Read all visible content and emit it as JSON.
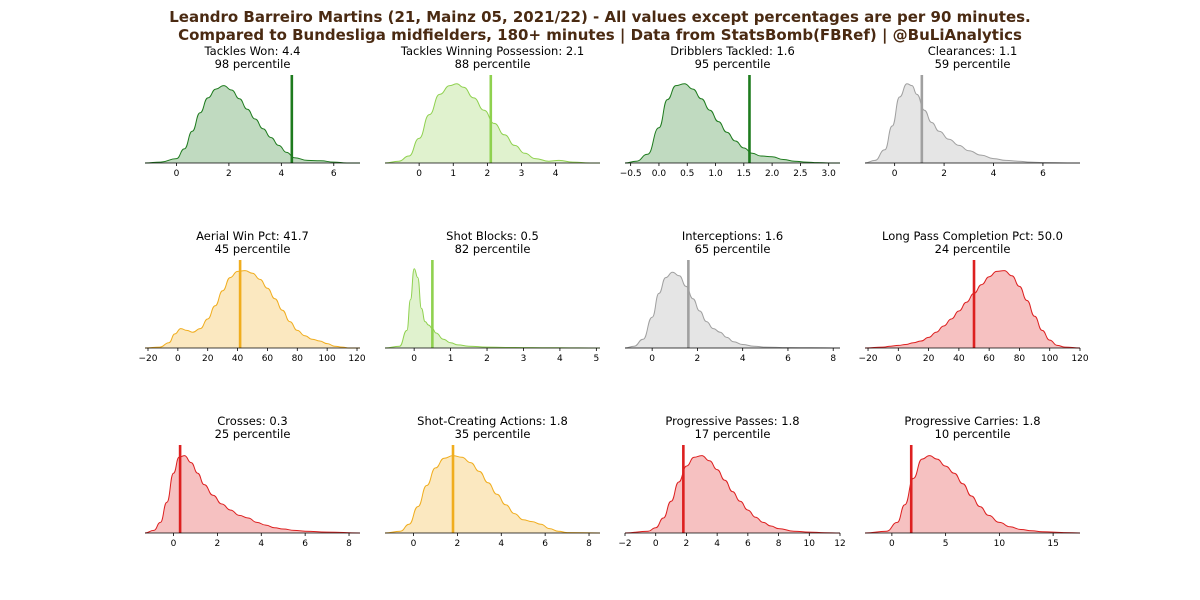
{
  "figure": {
    "title_line1": "Leandro Barreiro Martins (21, Mainz 05, 2021/22) - All values except percentages are per 90 minutes.",
    "title_line2": "Compared to Bundesliga midfielders, 180+ minutes | Data from StatsBomb(FBRef) | @BuLiAnalytics",
    "title_color": "#4a2a12"
  },
  "chart_data": [
    {
      "type": "area",
      "metric": "Tackles Won",
      "value": 4.4,
      "value_label": "4.4",
      "percentile_label": "98 percentile",
      "color": "#1e7b1e",
      "xlim": [
        -1.2,
        7
      ],
      "ticks": [
        0,
        2,
        4,
        6
      ],
      "tick_labels": [
        "0",
        "2",
        "4",
        "6"
      ],
      "density_x": [
        -1.2,
        -0.6,
        0,
        0.3,
        0.6,
        0.9,
        1.2,
        1.5,
        1.8,
        2.1,
        2.4,
        2.7,
        3.0,
        3.3,
        3.6,
        3.9,
        4.2,
        4.5,
        5.0,
        5.5,
        6.0,
        6.5,
        7.0
      ],
      "density_y": [
        0,
        0.01,
        0.05,
        0.16,
        0.36,
        0.57,
        0.74,
        0.84,
        0.88,
        0.83,
        0.73,
        0.61,
        0.5,
        0.39,
        0.29,
        0.2,
        0.12,
        0.06,
        0.03,
        0.025,
        0.01,
        0,
        0
      ]
    },
    {
      "type": "area",
      "metric": "Tackles Winning Possession",
      "value": 2.1,
      "value_label": "2.1",
      "percentile_label": "88 percentile",
      "color": "#8fd14f",
      "xlim": [
        -1.0,
        5.3
      ],
      "ticks": [
        0,
        1,
        2,
        3,
        4
      ],
      "tick_labels": [
        "0",
        "1",
        "2",
        "3",
        "4"
      ],
      "density_x": [
        -1.0,
        -0.6,
        -0.3,
        0,
        0.3,
        0.6,
        0.9,
        1.1,
        1.3,
        1.6,
        1.9,
        2.2,
        2.5,
        2.8,
        3.1,
        3.4,
        3.8,
        4.1,
        4.5,
        5.0,
        5.3
      ],
      "density_y": [
        0,
        0.02,
        0.08,
        0.28,
        0.55,
        0.78,
        0.88,
        0.9,
        0.86,
        0.74,
        0.6,
        0.45,
        0.32,
        0.2,
        0.11,
        0.05,
        0.02,
        0.03,
        0.01,
        0,
        0
      ]
    },
    {
      "type": "area",
      "metric": "Dribblers Tackled",
      "value": 1.6,
      "value_label": "1.6",
      "percentile_label": "95 percentile",
      "color": "#1e7b1e",
      "xlim": [
        -0.6,
        3.2
      ],
      "ticks": [
        -0.5,
        0,
        0.5,
        1,
        1.5,
        2,
        2.5,
        3
      ],
      "tick_labels": [
        "−0.5",
        "0.0",
        "0.5",
        "1.0",
        "1.5",
        "2.0",
        "2.5",
        "3.0"
      ],
      "density_x": [
        -0.6,
        -0.4,
        -0.2,
        0,
        0.15,
        0.3,
        0.45,
        0.6,
        0.75,
        0.9,
        1.05,
        1.2,
        1.35,
        1.5,
        1.65,
        1.8,
        2.0,
        2.2,
        2.4,
        2.6,
        2.8,
        3.0,
        3.2
      ],
      "density_y": [
        0,
        0.02,
        0.1,
        0.4,
        0.72,
        0.88,
        0.9,
        0.84,
        0.73,
        0.6,
        0.47,
        0.35,
        0.25,
        0.17,
        0.11,
        0.08,
        0.07,
        0.04,
        0.02,
        0.01,
        0.005,
        0,
        0
      ]
    },
    {
      "type": "area",
      "metric": "Clearances",
      "value": 1.1,
      "value_label": "1.1",
      "percentile_label": "59 percentile",
      "color": "#a0a0a0",
      "xlim": [
        -1.2,
        7.5
      ],
      "ticks": [
        0,
        2,
        4,
        6
      ],
      "tick_labels": [
        "0",
        "2",
        "4",
        "6"
      ],
      "density_x": [
        -1.2,
        -0.8,
        -0.4,
        -0.1,
        0.2,
        0.5,
        0.7,
        0.9,
        1.2,
        1.5,
        1.8,
        2.2,
        2.6,
        3.0,
        3.5,
        4.0,
        4.5,
        5.0,
        5.5,
        6.0,
        7.0,
        7.5
      ],
      "density_y": [
        0,
        0.03,
        0.15,
        0.42,
        0.75,
        0.9,
        0.88,
        0.78,
        0.6,
        0.46,
        0.36,
        0.27,
        0.2,
        0.14,
        0.09,
        0.05,
        0.03,
        0.02,
        0.01,
        0.005,
        0,
        0
      ]
    },
    {
      "type": "area",
      "metric": "Aerial Win Pct",
      "value": 41.7,
      "value_label": "41.7",
      "percentile_label": "45 percentile",
      "color": "#f0ad1e",
      "xlim": [
        -22,
        122
      ],
      "ticks": [
        -20,
        0,
        20,
        40,
        60,
        80,
        100,
        120
      ],
      "tick_labels": [
        "−20",
        "0",
        "20",
        "40",
        "60",
        "80",
        "100",
        "120"
      ],
      "density_x": [
        -22,
        -12,
        -6,
        -2,
        2,
        6,
        10,
        15,
        20,
        25,
        30,
        35,
        40,
        45,
        50,
        55,
        60,
        65,
        70,
        75,
        80,
        85,
        90,
        95,
        100,
        105,
        110,
        115,
        122
      ],
      "density_y": [
        0,
        0.01,
        0.06,
        0.16,
        0.22,
        0.2,
        0.18,
        0.22,
        0.33,
        0.48,
        0.65,
        0.8,
        0.87,
        0.88,
        0.85,
        0.78,
        0.68,
        0.56,
        0.43,
        0.3,
        0.2,
        0.14,
        0.1,
        0.08,
        0.05,
        0.02,
        0.01,
        0,
        0
      ]
    },
    {
      "type": "area",
      "metric": "Shot Blocks",
      "value": 0.5,
      "value_label": "0.5",
      "percentile_label": "82 percentile",
      "color": "#8fd14f",
      "xlim": [
        -0.8,
        5.1
      ],
      "ticks": [
        0,
        1,
        2,
        3,
        4,
        5
      ],
      "tick_labels": [
        "0",
        "1",
        "2",
        "3",
        "4",
        "5"
      ],
      "density_x": [
        -0.8,
        -0.4,
        -0.2,
        -0.1,
        0,
        0.1,
        0.2,
        0.3,
        0.4,
        0.5,
        0.6,
        0.8,
        1.0,
        1.2,
        1.5,
        2.0,
        2.5,
        3.0,
        3.5,
        4.0,
        4.5,
        5.1
      ],
      "density_y": [
        0,
        0.02,
        0.2,
        0.55,
        0.9,
        0.8,
        0.45,
        0.3,
        0.26,
        0.22,
        0.17,
        0.1,
        0.06,
        0.035,
        0.02,
        0.01,
        0.006,
        0.004,
        0.003,
        0.002,
        0.001,
        0
      ]
    },
    {
      "type": "area",
      "metric": "Interceptions",
      "value": 1.6,
      "value_label": "1.6",
      "percentile_label": "65 percentile",
      "color": "#a0a0a0",
      "xlim": [
        -1.2,
        8.3
      ],
      "ticks": [
        0,
        2,
        4,
        6,
        8
      ],
      "tick_labels": [
        "0",
        "2",
        "4",
        "6",
        "8"
      ],
      "density_x": [
        -1.2,
        -0.8,
        -0.4,
        0,
        0.3,
        0.6,
        0.9,
        1.2,
        1.5,
        1.8,
        2.1,
        2.4,
        2.7,
        3.0,
        3.3,
        3.6,
        4.0,
        4.5,
        5.0,
        6.0,
        7.0,
        8.3
      ],
      "density_y": [
        0,
        0.02,
        0.1,
        0.35,
        0.62,
        0.8,
        0.86,
        0.82,
        0.7,
        0.56,
        0.42,
        0.3,
        0.22,
        0.18,
        0.12,
        0.07,
        0.04,
        0.02,
        0.01,
        0.005,
        0.002,
        0
      ]
    },
    {
      "type": "area",
      "metric": "Long Pass Completion Pct",
      "value": 50.0,
      "value_label": "50.0",
      "percentile_label": "24 percentile",
      "color": "#dd2020",
      "xlim": [
        -22,
        120
      ],
      "ticks": [
        -20,
        0,
        20,
        40,
        60,
        80,
        100,
        120
      ],
      "tick_labels": [
        "−20",
        "0",
        "20",
        "40",
        "60",
        "80",
        "100",
        "120"
      ],
      "density_x": [
        -22,
        -10,
        -5,
        0,
        5,
        10,
        15,
        20,
        25,
        30,
        35,
        40,
        45,
        50,
        55,
        60,
        65,
        70,
        75,
        80,
        85,
        90,
        95,
        100,
        105,
        110,
        120
      ],
      "density_y": [
        0,
        0.01,
        0.02,
        0.03,
        0.04,
        0.06,
        0.08,
        0.12,
        0.18,
        0.25,
        0.33,
        0.42,
        0.52,
        0.62,
        0.72,
        0.81,
        0.87,
        0.88,
        0.82,
        0.7,
        0.54,
        0.36,
        0.2,
        0.09,
        0.03,
        0.01,
        0
      ]
    },
    {
      "type": "area",
      "metric": "Crosses",
      "value": 0.3,
      "value_label": "0.3",
      "percentile_label": "25 percentile",
      "color": "#dd2020",
      "xlim": [
        -1.3,
        8.5
      ],
      "ticks": [
        0,
        2,
        4,
        6,
        8
      ],
      "tick_labels": [
        "0",
        "2",
        "4",
        "6",
        "8"
      ],
      "density_x": [
        -1.3,
        -0.9,
        -0.6,
        -0.3,
        0,
        0.25,
        0.5,
        0.8,
        1.1,
        1.4,
        1.8,
        2.2,
        2.6,
        3.0,
        3.4,
        3.8,
        4.2,
        4.6,
        5.0,
        5.5,
        6.0,
        7.0,
        8.5
      ],
      "density_y": [
        0,
        0.03,
        0.12,
        0.35,
        0.68,
        0.86,
        0.88,
        0.8,
        0.68,
        0.55,
        0.43,
        0.33,
        0.26,
        0.2,
        0.17,
        0.12,
        0.09,
        0.06,
        0.045,
        0.03,
        0.02,
        0.01,
        0
      ]
    },
    {
      "type": "area",
      "metric": "Shot-Creating Actions",
      "value": 1.8,
      "value_label": "1.8",
      "percentile_label": "35 percentile",
      "color": "#f0ad1e",
      "xlim": [
        -1.3,
        8.5
      ],
      "ticks": [
        0,
        2,
        4,
        6,
        8
      ],
      "tick_labels": [
        "0",
        "2",
        "4",
        "6",
        "8"
      ],
      "density_x": [
        -1.3,
        -0.6,
        -0.2,
        0.2,
        0.6,
        1.0,
        1.4,
        1.8,
        2.2,
        2.6,
        3.0,
        3.4,
        3.8,
        4.2,
        4.6,
        5.0,
        5.4,
        5.8,
        6.2,
        6.6,
        7.0,
        8.5
      ],
      "density_y": [
        0,
        0.02,
        0.1,
        0.3,
        0.54,
        0.74,
        0.85,
        0.88,
        0.86,
        0.8,
        0.7,
        0.57,
        0.44,
        0.32,
        0.22,
        0.15,
        0.13,
        0.1,
        0.05,
        0.02,
        0.005,
        0
      ]
    },
    {
      "type": "area",
      "metric": "Progressive Passes",
      "value": 1.8,
      "value_label": "1.8",
      "percentile_label": "17 percentile",
      "color": "#dd2020",
      "xlim": [
        -2,
        12
      ],
      "ticks": [
        -2,
        0,
        2,
        4,
        6,
        8,
        10,
        12
      ],
      "tick_labels": [
        "−2",
        "0",
        "2",
        "4",
        "6",
        "8",
        "10",
        "12"
      ],
      "density_x": [
        -2,
        -0.5,
        0,
        0.5,
        1.0,
        1.5,
        2.0,
        2.5,
        3.0,
        3.5,
        4.0,
        4.5,
        5.0,
        5.5,
        6.0,
        6.5,
        7.0,
        7.5,
        8.0,
        9.0,
        10.0,
        11.0,
        12.0
      ],
      "density_y": [
        0,
        0.02,
        0.06,
        0.17,
        0.36,
        0.58,
        0.76,
        0.86,
        0.88,
        0.82,
        0.72,
        0.6,
        0.47,
        0.36,
        0.26,
        0.18,
        0.12,
        0.08,
        0.05,
        0.02,
        0.01,
        0.003,
        0
      ]
    },
    {
      "type": "area",
      "metric": "Progressive Carries",
      "value": 1.8,
      "value_label": "1.8",
      "percentile_label": "10 percentile",
      "color": "#dd2020",
      "xlim": [
        -2.5,
        17.5
      ],
      "ticks": [
        0,
        5,
        10,
        15
      ],
      "tick_labels": [
        "0",
        "5",
        "10",
        "15"
      ],
      "density_x": [
        -2.5,
        -0.5,
        0.5,
        1.2,
        2.0,
        2.8,
        3.5,
        4.2,
        5.0,
        5.8,
        6.6,
        7.4,
        8.2,
        9.0,
        10.0,
        11.0,
        12.0,
        13.0,
        14.0,
        15.0,
        16.0,
        17.5
      ],
      "density_y": [
        0,
        0.02,
        0.12,
        0.32,
        0.62,
        0.84,
        0.88,
        0.84,
        0.76,
        0.68,
        0.56,
        0.42,
        0.3,
        0.2,
        0.12,
        0.07,
        0.04,
        0.025,
        0.015,
        0.01,
        0.004,
        0
      ]
    }
  ]
}
